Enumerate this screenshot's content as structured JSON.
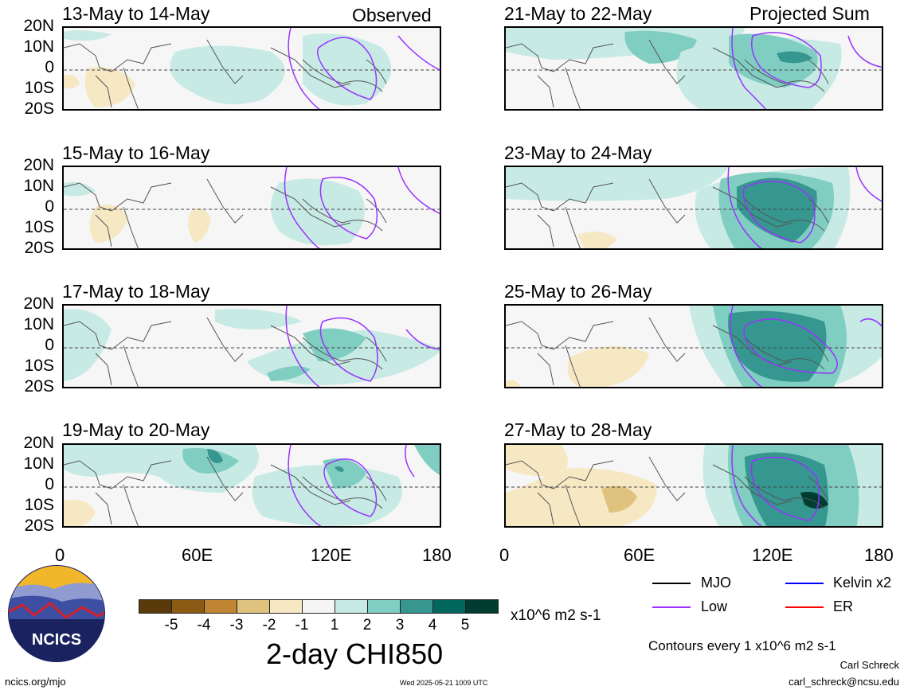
{
  "labels": {
    "observed": "Observed",
    "projected": "Projected Sum"
  },
  "panels": {
    "left": [
      {
        "title": "13-May to 14-May"
      },
      {
        "title": "15-May to 16-May"
      },
      {
        "title": "17-May to 18-May"
      },
      {
        "title": "19-May to 20-May"
      }
    ],
    "right": [
      {
        "title": "21-May to 22-May"
      },
      {
        "title": "23-May to 24-May"
      },
      {
        "title": "25-May to 26-May"
      },
      {
        "title": "27-May to 28-May"
      }
    ]
  },
  "lat_ticks": [
    "20N",
    "10N",
    "0",
    "10S",
    "20S"
  ],
  "lon_ticks": [
    "0",
    "60E",
    "120E",
    "180"
  ],
  "colorbar": {
    "labels": [
      "-5",
      "-4",
      "-3",
      "-2",
      "-1",
      "1",
      "2",
      "3",
      "4",
      "5"
    ],
    "colors": [
      "#5a3a0a",
      "#8b5a14",
      "#c08533",
      "#dfc27d",
      "#f6e8c3",
      "#f5f5f5",
      "#c7eae5",
      "#80cdc1",
      "#35978f",
      "#01665e",
      "#003c30"
    ],
    "units": "x10^6 m2 s-1"
  },
  "main_title": "2-day CHI850",
  "legend": {
    "mjo": {
      "label": "MJO",
      "color": "#000000"
    },
    "kelvin": {
      "label": "Kelvin x2",
      "color": "#0000ff"
    },
    "low": {
      "label": "Low",
      "color": "#9933ff"
    },
    "er": {
      "label": "ER",
      "color": "#ff0000"
    }
  },
  "contour_note": "Contours every 1 x10^6 m2 s-1",
  "author": "Carl Schreck",
  "email": "carl_schreck@ncsu.edu",
  "site": "ncics.org/mjo",
  "timestamp": "Wed 2025-05-21 1009 UTC",
  "logo_text": "NCICS"
}
